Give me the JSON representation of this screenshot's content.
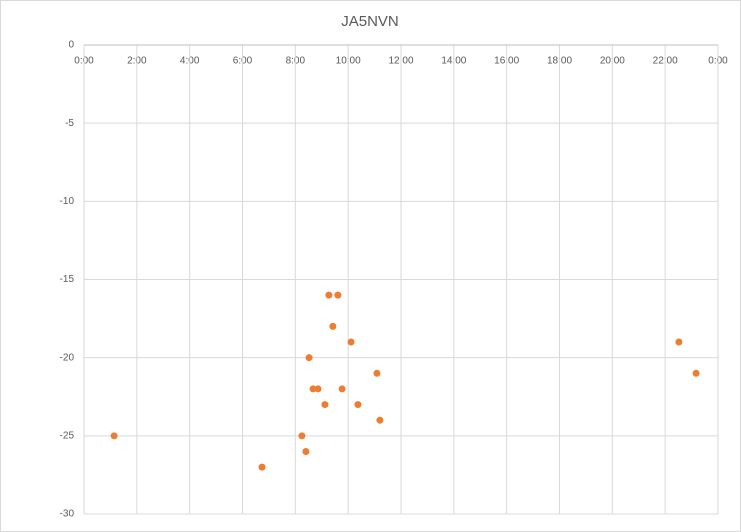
{
  "chart_data": {
    "type": "scatter",
    "title": "JA5NVN",
    "series": [
      {
        "color": "#ed7d31",
        "x": [
          1.14,
          6.74,
          8.25,
          8.4,
          8.52,
          8.67,
          8.86,
          9.12,
          9.27,
          9.42,
          9.61,
          9.77,
          10.11,
          10.37,
          11.09,
          11.2,
          22.52,
          23.17
        ],
        "values": [
          -25,
          -27,
          -25,
          -26,
          -20,
          -22,
          -22,
          -23,
          -16,
          -18,
          -16,
          -22,
          -19,
          -23,
          -21,
          -24,
          -19,
          -21
        ]
      }
    ],
    "xlim": [
      0,
      24
    ],
    "xticks": [
      {
        "value": 0,
        "label": "0:00"
      },
      {
        "value": 2,
        "label": "2:00"
      },
      {
        "value": 4,
        "label": "4:00"
      },
      {
        "value": 6,
        "label": "6:00"
      },
      {
        "value": 8,
        "label": "8:00"
      },
      {
        "value": 10,
        "label": "10:00"
      },
      {
        "value": 12,
        "label": "12:00"
      },
      {
        "value": 14,
        "label": "14:00"
      },
      {
        "value": 16,
        "label": "16:00"
      },
      {
        "value": 18,
        "label": "18:00"
      },
      {
        "value": 20,
        "label": "20:00"
      },
      {
        "value": 22,
        "label": "22:00"
      },
      {
        "value": 24,
        "label": "0:00"
      }
    ],
    "ylim": [
      -30,
      0
    ],
    "yticks": [
      0,
      -5,
      -10,
      -15,
      -20,
      -25,
      -30
    ],
    "grid": true
  }
}
